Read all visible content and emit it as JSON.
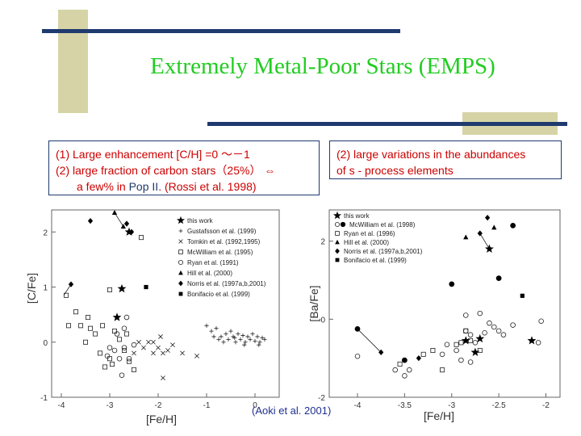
{
  "slide": {
    "title": "Extremely Metal-Poor Stars (EMPS)",
    "box_left": {
      "line1": "(1) Large enhancement [C/H] =0 ～－1",
      "line2": "(2) large fraction of carbon stars（25%） ⇔",
      "line3_a": "a few% in ",
      "line3_pop": "Pop II",
      "line3_b": ".  (Rossi et al. 1998)"
    },
    "box_right": {
      "line1": "(2) large variations in the abundances",
      "line2": "of s - process elements"
    },
    "citation": "(Aoki et al. 2001)",
    "colors": {
      "title": "#22cc22",
      "box_text": "#cc0000",
      "bars": "#1f3a6e",
      "accent_block": "#d6d4a6"
    }
  },
  "chart_data": [
    {
      "type": "scatter",
      "title": "",
      "xlabel": "[Fe/H]",
      "ylabel": "[C/Fe]",
      "xlim": [
        -4.2,
        0.5
      ],
      "ylim": [
        -1,
        2.4
      ],
      "xticks": [
        "-4",
        "-3",
        "-2",
        "-1",
        "0"
      ],
      "yticks": [
        "-1",
        "0",
        "1",
        "2"
      ],
      "legend_position": "top-right",
      "legend": [
        "this work",
        "Gustafsson et al. (1999)",
        "Tomkin et al. (1992,1995)",
        "McWilliam et al. (1995)",
        "Ryan et al. (1991)",
        "Hill et al. (2000)",
        "Norris et al. (1997a,b,2001)",
        "Bonifacio et al. (1999)"
      ],
      "series": [
        {
          "name": "this work",
          "marker": "star",
          "points": [
            [
              -2.6,
              2.0
            ],
            [
              -2.75,
              0.97
            ],
            [
              -2.85,
              0.45
            ]
          ]
        },
        {
          "name": "Gustafsson et al. (1999)",
          "marker": "plus",
          "points": [
            [
              -1.0,
              0.3
            ],
            [
              -0.9,
              0.2
            ],
            [
              -0.8,
              0.25
            ],
            [
              -0.7,
              0.1
            ],
            [
              -0.6,
              0.15
            ],
            [
              -0.55,
              0.05
            ],
            [
              -0.5,
              0.2
            ],
            [
              -0.45,
              0.1
            ],
            [
              -0.4,
              0.0
            ],
            [
              -0.35,
              0.15
            ],
            [
              -0.3,
              0.05
            ],
            [
              -0.25,
              0.12
            ],
            [
              -0.2,
              0.0
            ],
            [
              -0.15,
              0.1
            ],
            [
              -0.1,
              0.05
            ],
            [
              -0.05,
              0.15
            ],
            [
              0.0,
              0.02
            ],
            [
              0.05,
              0.1
            ],
            [
              0.1,
              0.0
            ],
            [
              0.15,
              0.08
            ],
            [
              0.2,
              0.05
            ],
            [
              -0.65,
              0.0
            ],
            [
              -0.75,
              0.05
            ],
            [
              -0.85,
              0.1
            ],
            [
              0.08,
              -0.05
            ],
            [
              -0.22,
              -0.05
            ],
            [
              -0.42,
              0.08
            ]
          ]
        },
        {
          "name": "Tomkin et al. (1992,1995)",
          "marker": "x",
          "points": [
            [
              -2.4,
              0.0
            ],
            [
              -2.3,
              -0.1
            ],
            [
              -2.2,
              0.0
            ],
            [
              -2.1,
              -0.2
            ],
            [
              -2.0,
              -0.1
            ],
            [
              -1.9,
              -0.2
            ],
            [
              -1.8,
              -0.15
            ],
            [
              -1.5,
              -0.2
            ],
            [
              -1.2,
              -0.25
            ],
            [
              -1.9,
              -0.65
            ],
            [
              -2.1,
              0.0
            ],
            [
              -2.5,
              -0.2
            ],
            [
              -1.95,
              0.1
            ],
            [
              -1.7,
              -0.05
            ]
          ]
        },
        {
          "name": "McWilliam et al. (1995)",
          "marker": "square",
          "points": [
            [
              -3.9,
              0.85
            ],
            [
              -3.85,
              0.3
            ],
            [
              -3.7,
              0.55
            ],
            [
              -3.6,
              0.3
            ],
            [
              -3.5,
              0.0
            ],
            [
              -3.4,
              0.25
            ],
            [
              -3.3,
              0.15
            ],
            [
              -3.2,
              -0.2
            ],
            [
              -3.1,
              -0.45
            ],
            [
              -3.0,
              -0.3
            ],
            [
              -2.9,
              0.2
            ],
            [
              -2.8,
              0.05
            ],
            [
              -2.7,
              -0.15
            ],
            [
              -2.6,
              -0.35
            ],
            [
              -2.5,
              -0.5
            ],
            [
              -3.15,
              0.3
            ],
            [
              -3.0,
              0.95
            ],
            [
              -2.35,
              1.9
            ],
            [
              -2.95,
              -0.4
            ],
            [
              -3.45,
              0.45
            ],
            [
              -2.65,
              0.15
            ]
          ]
        },
        {
          "name": "Ryan et al. (1991)",
          "marker": "circle",
          "points": [
            [
              -3.0,
              -0.1
            ],
            [
              -2.9,
              -0.15
            ],
            [
              -2.8,
              -0.3
            ],
            [
              -2.7,
              -0.1
            ],
            [
              -2.6,
              -0.3
            ],
            [
              -2.75,
              -0.6
            ],
            [
              -2.85,
              0.15
            ],
            [
              -2.7,
              0.25
            ],
            [
              -2.5,
              -0.05
            ],
            [
              -2.65,
              0.45
            ],
            [
              -3.05,
              -0.25
            ]
          ]
        },
        {
          "name": "Hill et al. (2000)",
          "marker": "triangle",
          "points": [
            [
              -2.9,
              2.35
            ],
            [
              -2.72,
              2.1
            ]
          ]
        },
        {
          "name": "Norris et al. (1997a,b,2001)",
          "marker": "diamond",
          "points": [
            [
              -3.8,
              1.05
            ],
            [
              -3.4,
              2.2
            ],
            [
              -2.55,
              2.0
            ],
            [
              -2.65,
              2.15
            ]
          ]
        },
        {
          "name": "Bonifacio et al. (1999)",
          "marker": "filled-square",
          "points": [
            [
              -2.25,
              1.0
            ]
          ]
        }
      ],
      "connector_lines": [
        [
          [
            -3.8,
            1.05
          ],
          [
            -3.95,
            0.85
          ]
        ],
        [
          [
            -2.72,
            2.1
          ],
          [
            -2.9,
            2.35
          ]
        ]
      ]
    },
    {
      "type": "scatter",
      "title": "",
      "xlabel": "[Fe/H]",
      "ylabel": "[Ba/Fe]",
      "xlim": [
        -4.3,
        -1.85
      ],
      "ylim": [
        -2,
        2.8
      ],
      "xticks": [
        "-4",
        "-3.5",
        "-3",
        "-2.5",
        "-2"
      ],
      "yticks": [
        "-2",
        "0",
        "2"
      ],
      "legend_position": "top-left",
      "legend": [
        "this work",
        "McWilliam et al. (1998)",
        "Ryan et al. (1996)",
        "Hill et al. (2000)",
        "Norris et al. (1997a,b,2001)",
        "Bonifacio et al. (1999)"
      ],
      "series": [
        {
          "name": "this work",
          "marker": "star",
          "points": [
            [
              -2.6,
              1.8
            ],
            [
              -2.85,
              -0.55
            ],
            [
              -2.75,
              -0.85
            ],
            [
              -2.7,
              -0.5
            ],
            [
              -2.15,
              -0.55
            ]
          ]
        },
        {
          "name": "McWilliam et al. (1998)",
          "marker": "filled-circle",
          "points": [
            [
              -4.0,
              -0.25
            ],
            [
              -3.5,
              -1.05
            ],
            [
              -3.0,
              0.9
            ],
            [
              -2.5,
              1.05
            ],
            [
              -2.35,
              2.4
            ]
          ]
        },
        {
          "name": "McWilliam et al. (1998) open",
          "marker": "circle",
          "points": [
            [
              -4.0,
              -0.95
            ],
            [
              -3.6,
              -1.3
            ],
            [
              -3.5,
              -1.45
            ],
            [
              -3.45,
              -1.3
            ],
            [
              -3.1,
              -0.9
            ],
            [
              -3.05,
              -0.65
            ],
            [
              -2.95,
              -0.8
            ],
            [
              -2.85,
              -0.3
            ],
            [
              -2.8,
              -1.1
            ],
            [
              -2.75,
              -0.6
            ],
            [
              -2.7,
              0.15
            ],
            [
              -2.6,
              -0.1
            ],
            [
              -2.55,
              -0.2
            ],
            [
              -2.5,
              -0.3
            ],
            [
              -2.45,
              -0.4
            ],
            [
              -2.35,
              -0.15
            ],
            [
              -2.05,
              -0.05
            ],
            [
              -2.08,
              -0.6
            ],
            [
              -2.85,
              0.1
            ],
            [
              -2.8,
              -0.4
            ],
            [
              -2.65,
              -0.35
            ],
            [
              -2.9,
              -1.05
            ]
          ]
        },
        {
          "name": "Ryan et al. (1996)",
          "marker": "square",
          "points": [
            [
              -3.55,
              -1.15
            ],
            [
              -3.3,
              -0.9
            ],
            [
              -3.2,
              -0.8
            ],
            [
              -3.1,
              -1.3
            ],
            [
              -2.95,
              -0.65
            ],
            [
              -2.9,
              -0.6
            ],
            [
              -2.85,
              -0.3
            ],
            [
              -2.8,
              -0.55
            ],
            [
              -2.7,
              -0.8
            ]
          ]
        },
        {
          "name": "Hill et al. (2000)",
          "marker": "triangle",
          "points": [
            [
              -2.85,
              2.1
            ],
            [
              -2.55,
              2.35
            ]
          ]
        },
        {
          "name": "Norris et al. (1997a,b,2001)",
          "marker": "diamond",
          "points": [
            [
              -3.75,
              -0.85
            ],
            [
              -3.35,
              -1.0
            ],
            [
              -2.7,
              2.2
            ],
            [
              -2.62,
              2.6
            ]
          ]
        },
        {
          "name": "Bonifacio et al. (1999)",
          "marker": "filled-square",
          "points": [
            [
              -2.25,
              0.6
            ]
          ]
        }
      ],
      "connector_lines": [
        [
          [
            -4.0,
            -0.25
          ],
          [
            -3.75,
            -0.85
          ]
        ],
        [
          [
            -2.7,
            2.2
          ],
          [
            -2.6,
            1.8
          ]
        ]
      ]
    }
  ]
}
